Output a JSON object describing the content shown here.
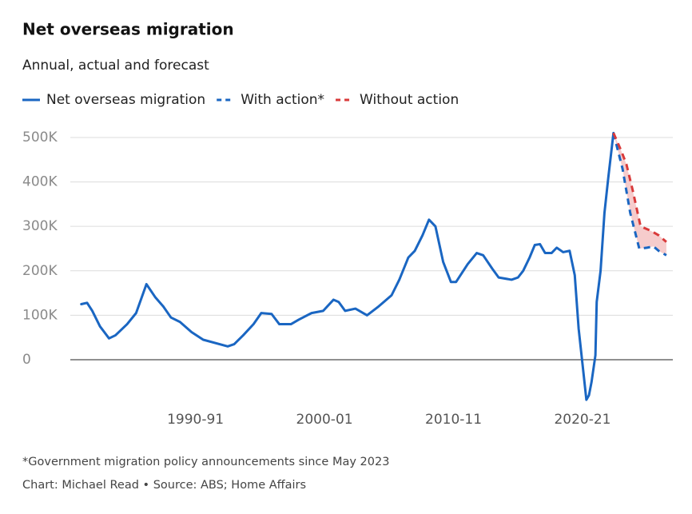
{
  "chart_data": {
    "type": "line",
    "title": "Net overseas migration",
    "subtitle": "Annual, actual and forecast",
    "notes": [
      "*Government migration policy announcements since May 2023",
      "Chart: Michael Read • Source: ABS; Home Affairs"
    ],
    "xlim": [
      1981.3,
      2028
    ],
    "xticks": [
      {
        "value": 1991,
        "label": "1990-91"
      },
      {
        "value": 2001,
        "label": "2000-01"
      },
      {
        "value": 2011,
        "label": "2010-11"
      },
      {
        "value": 2021,
        "label": "2020-21"
      }
    ],
    "ylim": [
      -110000,
      510000
    ],
    "yticks": [
      0,
      {
        "value": 100000,
        "label": "100K"
      },
      {
        "value": 200000,
        "label": "200K"
      },
      {
        "value": 300000,
        "label": "300K"
      },
      {
        "value": 400000,
        "label": "400K"
      },
      {
        "value": 500000,
        "label": "500K"
      }
    ],
    "grid": true,
    "range_fill": "#f6cccc",
    "series": [
      {
        "name": "Net overseas migration",
        "color": "#1a66c2",
        "dashed": false,
        "x": [
          1982.15,
          1982.6,
          1983.0,
          1983.6,
          1984.3,
          1984.8,
          1985.7,
          1986.4,
          1987.2,
          1987.9,
          1988.5,
          1989.1,
          1989.8,
          1990.7,
          1991.6,
          1993.5,
          1994.0,
          1994.7,
          1995.5,
          1996.1,
          1996.9,
          1997.5,
          1998.4,
          1999.0,
          2000.0,
          2000.9,
          2001.7,
          2002.1,
          2002.6,
          2003.4,
          2004.3,
          2005.2,
          2006.2,
          2006.8,
          2007.5,
          2008.0,
          2008.6,
          2009.1,
          2009.6,
          2010.2,
          2010.8,
          2011.2,
          2012.1,
          2012.8,
          2013.3,
          2014.0,
          2014.5,
          2015.5,
          2016.0,
          2016.4,
          2016.9,
          2017.3,
          2017.7,
          2018.1,
          2018.6,
          2019.0,
          2019.5,
          2020.0,
          2020.4,
          2020.7,
          2021.0,
          2021.3,
          2021.5,
          2021.7,
          2022.0,
          2022.1,
          2022.4,
          2022.7,
          2023.0,
          2023.4
        ],
        "values": [
          125000,
          128000,
          110000,
          75000,
          48000,
          55000,
          80000,
          105000,
          170000,
          140000,
          120000,
          95000,
          85000,
          62000,
          45000,
          30000,
          35000,
          55000,
          80000,
          105000,
          103000,
          80000,
          80000,
          90000,
          105000,
          110000,
          135000,
          130000,
          110000,
          115000,
          100000,
          120000,
          145000,
          180000,
          230000,
          245000,
          280000,
          315000,
          300000,
          220000,
          175000,
          175000,
          215000,
          240000,
          235000,
          205000,
          185000,
          180000,
          185000,
          200000,
          230000,
          258000,
          260000,
          240000,
          240000,
          252000,
          242000,
          245000,
          190000,
          70000,
          -10000,
          -90000,
          -80000,
          -50000,
          10000,
          130000,
          200000,
          330000,
          410000,
          510000
        ]
      },
      {
        "name": "With action*",
        "color": "#1a66c2",
        "dashed": true,
        "x": [
          2023.4,
          2024.1,
          2024.7,
          2025.4,
          2026.0,
          2026.5,
          2026.9,
          2027.5
        ],
        "values": [
          510000,
          430000,
          330000,
          250000,
          252000,
          255000,
          245000,
          235000
        ]
      },
      {
        "name": "Without action",
        "color": "#d93a3a",
        "dashed": true,
        "x": [
          2023.4,
          2024.0,
          2024.4,
          2024.9,
          2025.5,
          2026.3,
          2026.9,
          2027.5
        ],
        "values": [
          510000,
          470000,
          440000,
          380000,
          300000,
          290000,
          280000,
          265000
        ]
      }
    ]
  }
}
